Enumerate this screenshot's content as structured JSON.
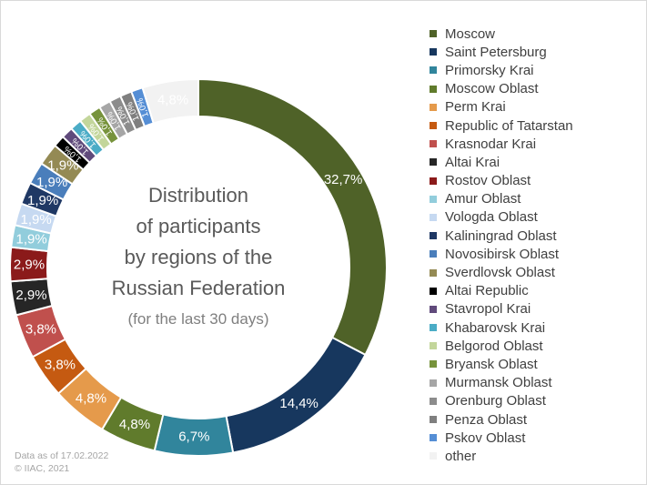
{
  "chart_data": {
    "type": "pie",
    "title_lines": [
      "Distribution",
      "of participants",
      "by regions of the",
      "Russian Federation"
    ],
    "subtitle": "(for the last 30 days)",
    "legend_position": "right",
    "slices": [
      {
        "label": "Moscow",
        "value": 32.7,
        "display": "32,7%",
        "color": "#4f6228",
        "label_color": "#ffffff"
      },
      {
        "label": "Saint Petersburg",
        "value": 14.4,
        "display": "14,4%",
        "color": "#17375e",
        "label_color": "#ffffff"
      },
      {
        "label": "Primorsky Krai",
        "value": 6.7,
        "display": "6,7%",
        "color": "#31859c",
        "label_color": "#ffffff"
      },
      {
        "label": "Moscow Oblast",
        "value": 4.8,
        "display": "4,8%",
        "color": "#607b2c",
        "label_color": "#ffffff"
      },
      {
        "label": "Perm Krai",
        "value": 4.8,
        "display": "4,8%",
        "color": "#e59a4b",
        "label_color": "#ffffff"
      },
      {
        "label": "Republic of Tatarstan",
        "value": 3.8,
        "display": "3,8%",
        "color": "#c55a11",
        "label_color": "#ffffff"
      },
      {
        "label": "Krasnodar Krai",
        "value": 3.8,
        "display": "3,8%",
        "color": "#c0504d",
        "label_color": "#ffffff"
      },
      {
        "label": "Altai Krai",
        "value": 2.9,
        "display": "2,9%",
        "color": "#262626",
        "label_color": "#ffffff"
      },
      {
        "label": "Rostov Oblast",
        "value": 2.9,
        "display": "2,9%",
        "color": "#8b1a1a",
        "label_color": "#ffffff"
      },
      {
        "label": "Amur Oblast",
        "value": 1.9,
        "display": "1,9%",
        "color": "#92cddc",
        "label_color": "#ffffff"
      },
      {
        "label": "Vologda Oblast",
        "value": 1.9,
        "display": "1,9%",
        "color": "#c6d9f1",
        "label_color": "#ffffff"
      },
      {
        "label": "Kaliningrad Oblast",
        "value": 1.9,
        "display": "1,9%",
        "color": "#1f3864",
        "label_color": "#ffffff"
      },
      {
        "label": "Novosibirsk Oblast",
        "value": 1.9,
        "display": "1,9%",
        "color": "#4a7ebb",
        "label_color": "#ffffff"
      },
      {
        "label": "Sverdlovsk Oblast",
        "value": 1.9,
        "display": "1,9%",
        "color": "#948a54",
        "label_color": "#ffffff"
      },
      {
        "label": "Altai Republic",
        "value": 1.0,
        "display": "1,0%",
        "color": "#000000",
        "label_color": "#ffffff"
      },
      {
        "label": "Stavropol Krai",
        "value": 1.0,
        "display": "1,0%",
        "color": "#604a7b",
        "label_color": "#ffffff"
      },
      {
        "label": "Khabarovsk Krai",
        "value": 1.0,
        "display": "1,0%",
        "color": "#4bacc6",
        "label_color": "#ffffff"
      },
      {
        "label": "Belgorod Oblast",
        "value": 1.0,
        "display": "1,0%",
        "color": "#c3d69b",
        "label_color": "#ffffff"
      },
      {
        "label": "Bryansk Oblast",
        "value": 1.0,
        "display": "1,0%",
        "color": "#77933c",
        "label_color": "#ffffff"
      },
      {
        "label": "Murmansk Oblast",
        "value": 1.0,
        "display": "1,0%",
        "color": "#a6a6a6",
        "label_color": "#ffffff"
      },
      {
        "label": "Orenburg Oblast",
        "value": 1.0,
        "display": "1,0%",
        "color": "#8c8c8c",
        "label_color": "#ffffff"
      },
      {
        "label": "Penza Oblast",
        "value": 1.0,
        "display": "1,0%",
        "color": "#7f7f7f",
        "label_color": "#ffffff"
      },
      {
        "label": "Pskov Oblast",
        "value": 1.0,
        "display": "1,0%",
        "color": "#558ed5",
        "label_color": "#ffffff"
      },
      {
        "label": "other",
        "value": 4.8,
        "display": "4,8%",
        "color": "#f2f2f2",
        "label_color": "#ffffff"
      }
    ]
  },
  "footer": {
    "date_line": "Data as of 17.02.2022",
    "copyright_line": "© IIAC, 2021"
  }
}
